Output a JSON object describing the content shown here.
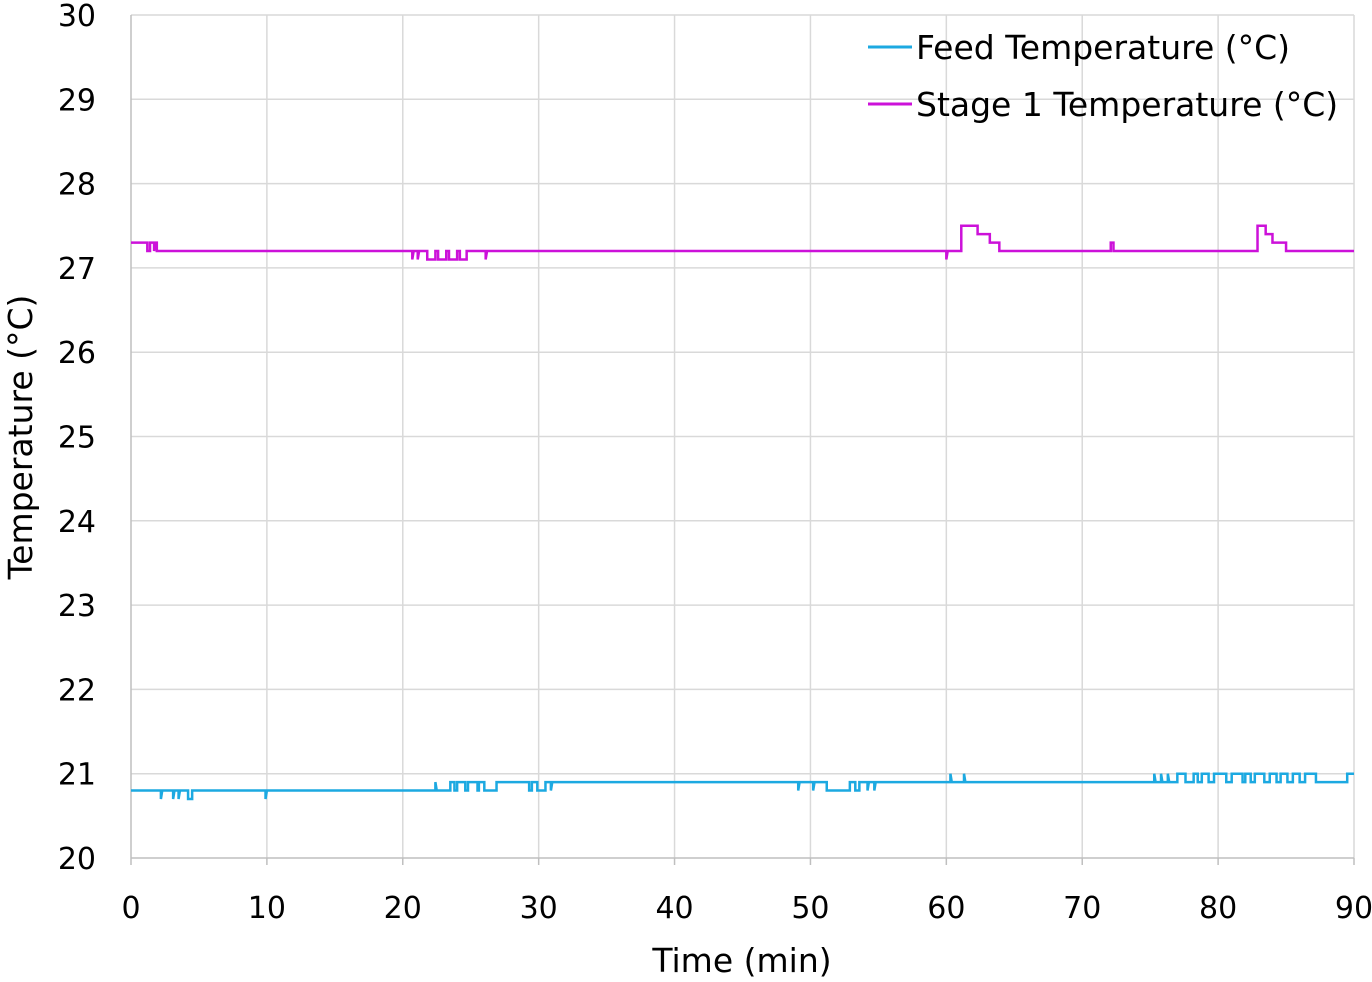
{
  "chart_data": {
    "type": "line",
    "title": "",
    "xlabel": "Time (min)",
    "ylabel": "Temperature (°C)",
    "xlim": [
      0,
      90
    ],
    "ylim": [
      20,
      30
    ],
    "xticks": [
      0,
      10,
      20,
      30,
      40,
      50,
      60,
      70,
      80,
      90
    ],
    "yticks": [
      20,
      21,
      22,
      23,
      24,
      25,
      26,
      27,
      28,
      29,
      30
    ],
    "xtick_labels": [
      "0",
      "10",
      "20",
      "30",
      "40",
      "50",
      "60",
      "70",
      "80",
      "90"
    ],
    "ytick_labels": [
      "20",
      "21",
      "22",
      "23",
      "24",
      "25",
      "26",
      "27",
      "28",
      "29",
      "30"
    ],
    "grid": true,
    "legend_position": "top-right",
    "series": [
      {
        "name": "Feed Temperature (°C)",
        "color": "#1CA9E1",
        "points": [
          [
            0,
            20.8
          ],
          [
            2.2,
            20.8
          ],
          [
            2.2,
            20.7
          ],
          [
            2.3,
            20.8
          ],
          [
            3.1,
            20.8
          ],
          [
            3.1,
            20.7
          ],
          [
            3.2,
            20.8
          ],
          [
            3.5,
            20.8
          ],
          [
            3.5,
            20.7
          ],
          [
            3.6,
            20.8
          ],
          [
            4.2,
            20.8
          ],
          [
            4.2,
            20.7
          ],
          [
            4.5,
            20.7
          ],
          [
            4.5,
            20.8
          ],
          [
            9.9,
            20.8
          ],
          [
            9.9,
            20.7
          ],
          [
            10.0,
            20.8
          ],
          [
            22.4,
            20.8
          ],
          [
            22.4,
            20.9
          ],
          [
            22.5,
            20.8
          ],
          [
            23.5,
            20.8
          ],
          [
            23.5,
            20.9
          ],
          [
            23.8,
            20.9
          ],
          [
            23.8,
            20.8
          ],
          [
            24.0,
            20.8
          ],
          [
            24.0,
            20.9
          ],
          [
            24.6,
            20.9
          ],
          [
            24.6,
            20.8
          ],
          [
            24.8,
            20.8
          ],
          [
            24.8,
            20.9
          ],
          [
            25.5,
            20.9
          ],
          [
            25.5,
            20.8
          ],
          [
            25.6,
            20.8
          ],
          [
            25.6,
            20.9
          ],
          [
            26.0,
            20.9
          ],
          [
            26.0,
            20.8
          ],
          [
            26.9,
            20.8
          ],
          [
            26.9,
            20.9
          ],
          [
            29.3,
            20.9
          ],
          [
            29.3,
            20.8
          ],
          [
            29.5,
            20.8
          ],
          [
            29.5,
            20.9
          ],
          [
            29.9,
            20.9
          ],
          [
            29.9,
            20.8
          ],
          [
            30.5,
            20.8
          ],
          [
            30.5,
            20.9
          ],
          [
            30.9,
            20.9
          ],
          [
            30.9,
            20.8
          ],
          [
            31.0,
            20.9
          ],
          [
            49.1,
            20.9
          ],
          [
            49.1,
            20.8
          ],
          [
            49.2,
            20.9
          ],
          [
            50.2,
            20.9
          ],
          [
            50.2,
            20.8
          ],
          [
            50.3,
            20.9
          ],
          [
            51.2,
            20.9
          ],
          [
            51.2,
            20.8
          ],
          [
            52.9,
            20.8
          ],
          [
            52.9,
            20.9
          ],
          [
            53.3,
            20.9
          ],
          [
            53.3,
            20.8
          ],
          [
            53.6,
            20.8
          ],
          [
            53.6,
            20.9
          ],
          [
            54.2,
            20.9
          ],
          [
            54.2,
            20.8
          ],
          [
            54.3,
            20.9
          ],
          [
            54.7,
            20.9
          ],
          [
            54.7,
            20.8
          ],
          [
            54.8,
            20.9
          ],
          [
            60.3,
            20.9
          ],
          [
            60.3,
            21.0
          ],
          [
            60.4,
            20.9
          ],
          [
            61.3,
            20.9
          ],
          [
            61.3,
            21.0
          ],
          [
            61.4,
            20.9
          ],
          [
            75.3,
            20.9
          ],
          [
            75.3,
            21.0
          ],
          [
            75.4,
            20.9
          ],
          [
            75.8,
            20.9
          ],
          [
            75.8,
            21.0
          ],
          [
            75.9,
            20.9
          ],
          [
            76.3,
            20.9
          ],
          [
            76.3,
            21.0
          ],
          [
            76.4,
            20.9
          ],
          [
            77.0,
            20.9
          ],
          [
            77.0,
            21.0
          ],
          [
            77.6,
            21.0
          ],
          [
            77.6,
            20.9
          ],
          [
            78.2,
            20.9
          ],
          [
            78.2,
            21.0
          ],
          [
            78.5,
            21.0
          ],
          [
            78.5,
            20.9
          ],
          [
            78.8,
            20.9
          ],
          [
            78.8,
            21.0
          ],
          [
            79.3,
            21.0
          ],
          [
            79.3,
            20.9
          ],
          [
            79.7,
            20.9
          ],
          [
            79.7,
            21.0
          ],
          [
            80.6,
            21.0
          ],
          [
            80.6,
            20.9
          ],
          [
            81.0,
            20.9
          ],
          [
            81.0,
            21.0
          ],
          [
            81.8,
            21.0
          ],
          [
            81.8,
            20.9
          ],
          [
            82.0,
            20.9
          ],
          [
            82.0,
            21.0
          ],
          [
            82.4,
            21.0
          ],
          [
            82.4,
            20.9
          ],
          [
            82.7,
            20.9
          ],
          [
            82.7,
            21.0
          ],
          [
            83.4,
            21.0
          ],
          [
            83.4,
            20.9
          ],
          [
            83.8,
            20.9
          ],
          [
            83.8,
            21.0
          ],
          [
            84.3,
            21.0
          ],
          [
            84.3,
            20.9
          ],
          [
            84.6,
            20.9
          ],
          [
            84.6,
            21.0
          ],
          [
            85.1,
            21.0
          ],
          [
            85.1,
            20.9
          ],
          [
            85.5,
            20.9
          ],
          [
            85.5,
            21.0
          ],
          [
            86.0,
            21.0
          ],
          [
            86.0,
            20.9
          ],
          [
            86.4,
            20.9
          ],
          [
            86.4,
            21.0
          ],
          [
            87.2,
            21.0
          ],
          [
            87.2,
            20.9
          ],
          [
            87.5,
            20.9
          ],
          [
            89.5,
            20.9
          ],
          [
            89.5,
            21.0
          ],
          [
            90,
            21.0
          ]
        ]
      },
      {
        "name": "Stage 1 Temperature (°C)",
        "color": "#CC11D9",
        "points": [
          [
            0,
            27.3
          ],
          [
            1.2,
            27.3
          ],
          [
            1.2,
            27.2
          ],
          [
            1.4,
            27.2
          ],
          [
            1.4,
            27.3
          ],
          [
            1.7,
            27.3
          ],
          [
            1.7,
            27.2
          ],
          [
            1.8,
            27.3
          ],
          [
            1.9,
            27.3
          ],
          [
            1.9,
            27.2
          ],
          [
            20.7,
            27.2
          ],
          [
            20.7,
            27.1
          ],
          [
            20.8,
            27.2
          ],
          [
            21.1,
            27.2
          ],
          [
            21.1,
            27.1
          ],
          [
            21.2,
            27.2
          ],
          [
            21.8,
            27.2
          ],
          [
            21.8,
            27.1
          ],
          [
            22.4,
            27.1
          ],
          [
            22.4,
            27.2
          ],
          [
            22.6,
            27.2
          ],
          [
            22.6,
            27.1
          ],
          [
            23.2,
            27.1
          ],
          [
            23.2,
            27.2
          ],
          [
            23.4,
            27.2
          ],
          [
            23.4,
            27.1
          ],
          [
            24.0,
            27.1
          ],
          [
            24.0,
            27.2
          ],
          [
            24.2,
            27.2
          ],
          [
            24.2,
            27.1
          ],
          [
            24.7,
            27.1
          ],
          [
            24.7,
            27.2
          ],
          [
            26.1,
            27.2
          ],
          [
            26.1,
            27.1
          ],
          [
            26.2,
            27.2
          ],
          [
            60.0,
            27.2
          ],
          [
            60.0,
            27.1
          ],
          [
            60.1,
            27.2
          ],
          [
            61.1,
            27.2
          ],
          [
            61.1,
            27.5
          ],
          [
            62.3,
            27.5
          ],
          [
            62.3,
            27.4
          ],
          [
            63.2,
            27.4
          ],
          [
            63.2,
            27.3
          ],
          [
            63.9,
            27.3
          ],
          [
            63.9,
            27.2
          ],
          [
            72.1,
            27.2
          ],
          [
            72.1,
            27.3
          ],
          [
            72.3,
            27.3
          ],
          [
            72.3,
            27.2
          ],
          [
            82.9,
            27.2
          ],
          [
            82.9,
            27.5
          ],
          [
            83.5,
            27.5
          ],
          [
            83.5,
            27.4
          ],
          [
            84.0,
            27.4
          ],
          [
            84.0,
            27.3
          ],
          [
            85.0,
            27.3
          ],
          [
            85.0,
            27.2
          ],
          [
            90,
            27.2
          ]
        ]
      }
    ]
  },
  "colors": {
    "grid": "#D9D9D9",
    "axis": "#BFBFBF",
    "feed": "#1CA9E1",
    "stage1": "#CC11D9"
  }
}
